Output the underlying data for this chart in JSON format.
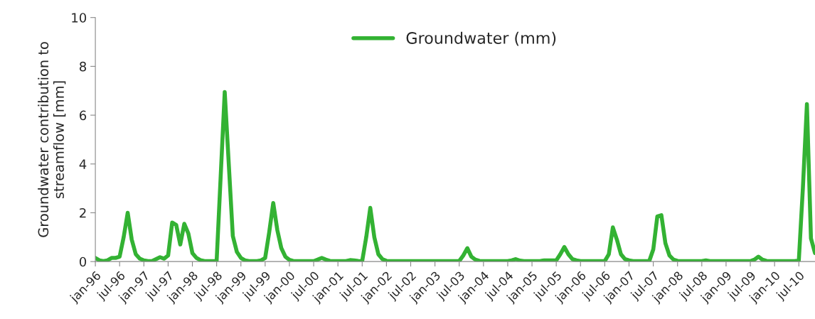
{
  "chart_data": {
    "type": "line",
    "ylabel": "Groundwater contribution to\nstreamflow [mm]",
    "categories": [
      "jan-96",
      null,
      null,
      null,
      null,
      null,
      "jul-96",
      null,
      null,
      null,
      null,
      null,
      "jan-97",
      null,
      null,
      null,
      null,
      null,
      "jul-97",
      null,
      null,
      null,
      null,
      null,
      "jan-98",
      null,
      null,
      null,
      null,
      null,
      "jul-98",
      null,
      null,
      null,
      null,
      null,
      "jan-99",
      null,
      null,
      null,
      null,
      null,
      "jul-99",
      null,
      null,
      null,
      null,
      null,
      "jan-00",
      null,
      null,
      null,
      null,
      null,
      "jul-00",
      null,
      null,
      null,
      null,
      null,
      "jan-01",
      null,
      null,
      null,
      null,
      null,
      "jul-01",
      null,
      null,
      null,
      null,
      null,
      "jan-02",
      null,
      null,
      null,
      null,
      null,
      "jul-02",
      null,
      null,
      null,
      null,
      null,
      "jan-03",
      null,
      null,
      null,
      null,
      null,
      "jul-03",
      null,
      null,
      null,
      null,
      null,
      "jan-04",
      null,
      null,
      null,
      null,
      null,
      "jul-04",
      null,
      null,
      null,
      null,
      null,
      "jan-05",
      null,
      null,
      null,
      null,
      null,
      "jul-05",
      null,
      null,
      null,
      null,
      null,
      "jan-06",
      null,
      null,
      null,
      null,
      null,
      "jul-06",
      null,
      null,
      null,
      null,
      null,
      "jan-07",
      null,
      null,
      null,
      null,
      null,
      "jul-07",
      null,
      null,
      null,
      null,
      null,
      "jan-08",
      null,
      null,
      null,
      null,
      null,
      "jul-08",
      null,
      null,
      null,
      null,
      null,
      "jan-09",
      null,
      null,
      null,
      null,
      null,
      "jul-09",
      null,
      null,
      null,
      null,
      null,
      "jan-10",
      null,
      null,
      null,
      null,
      null,
      "jul-10",
      null,
      null,
      null,
      null
    ],
    "series": [
      {
        "name": "Groundwater (mm)",
        "color": "#33b233",
        "values": [
          0.15,
          0.05,
          0.02,
          0.05,
          0.15,
          0.15,
          0.2,
          1.0,
          2.0,
          0.9,
          0.3,
          0.12,
          0.05,
          0.02,
          0.02,
          0.1,
          0.18,
          0.12,
          0.25,
          1.6,
          1.5,
          0.7,
          1.55,
          1.15,
          0.35,
          0.15,
          0.06,
          0.02,
          0.02,
          0.02,
          0.03,
          3.5,
          6.95,
          4.0,
          1.05,
          0.4,
          0.15,
          0.05,
          0.02,
          0.02,
          0.02,
          0.05,
          0.15,
          1.2,
          2.4,
          1.3,
          0.55,
          0.2,
          0.07,
          0.02,
          0.02,
          0.02,
          0.02,
          0.02,
          0.02,
          0.08,
          0.15,
          0.08,
          0.03,
          0.02,
          0.02,
          0.02,
          0.02,
          0.06,
          0.05,
          0.03,
          0.02,
          1.0,
          2.2,
          1.0,
          0.3,
          0.1,
          0.03,
          0.02,
          0.02,
          0.02,
          0.02,
          0.02,
          0.02,
          0.02,
          0.02,
          0.02,
          0.02,
          0.02,
          0.02,
          0.02,
          0.02,
          0.02,
          0.02,
          0.02,
          0.02,
          0.25,
          0.55,
          0.2,
          0.08,
          0.03,
          0.02,
          0.02,
          0.02,
          0.02,
          0.02,
          0.02,
          0.02,
          0.05,
          0.1,
          0.04,
          0.02,
          0.02,
          0.02,
          0.02,
          0.02,
          0.05,
          0.05,
          0.05,
          0.05,
          0.3,
          0.6,
          0.3,
          0.1,
          0.05,
          0.02,
          0.02,
          0.02,
          0.02,
          0.02,
          0.02,
          0.02,
          0.3,
          1.4,
          0.9,
          0.3,
          0.1,
          0.05,
          0.02,
          0.02,
          0.02,
          0.02,
          0.02,
          0.5,
          1.85,
          1.9,
          0.75,
          0.25,
          0.08,
          0.03,
          0.02,
          0.02,
          0.02,
          0.02,
          0.02,
          0.02,
          0.05,
          0.02,
          0.02,
          0.02,
          0.02,
          0.02,
          0.02,
          0.02,
          0.02,
          0.02,
          0.02,
          0.02,
          0.08,
          0.2,
          0.08,
          0.03,
          0.02,
          0.02,
          0.02,
          0.02,
          0.02,
          0.02,
          0.02,
          0.05,
          3.0,
          6.45,
          0.95,
          0.35
        ]
      }
    ],
    "ylim": [
      0,
      10
    ],
    "yticks": [
      0,
      2,
      4,
      6,
      8,
      10
    ],
    "legend": "top",
    "grid": false,
    "marker": "none",
    "line_style": "solid"
  }
}
